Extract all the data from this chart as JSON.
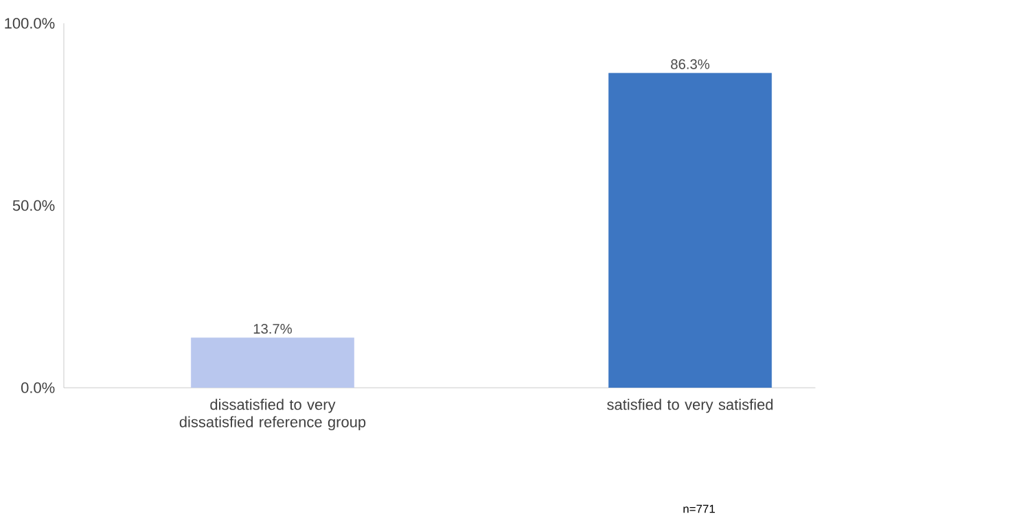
{
  "chart_data": {
    "type": "bar",
    "categories": [
      "dissatisfied to very dissatisfied reference group",
      "satisfied to very satisfied"
    ],
    "values": [
      13.7,
      86.3
    ],
    "colors": [
      "#b9c7ee",
      "#3d76c2"
    ],
    "value_labels": [
      "13.7%",
      "86.3%"
    ],
    "ylim": [
      0,
      100
    ],
    "yticks": [
      {
        "value": 0,
        "label": "0.0%"
      },
      {
        "value": 50,
        "label": "50.0%"
      },
      {
        "value": 100,
        "label": "100.0%"
      }
    ],
    "annotations": [
      "n=771"
    ],
    "grid": false
  }
}
